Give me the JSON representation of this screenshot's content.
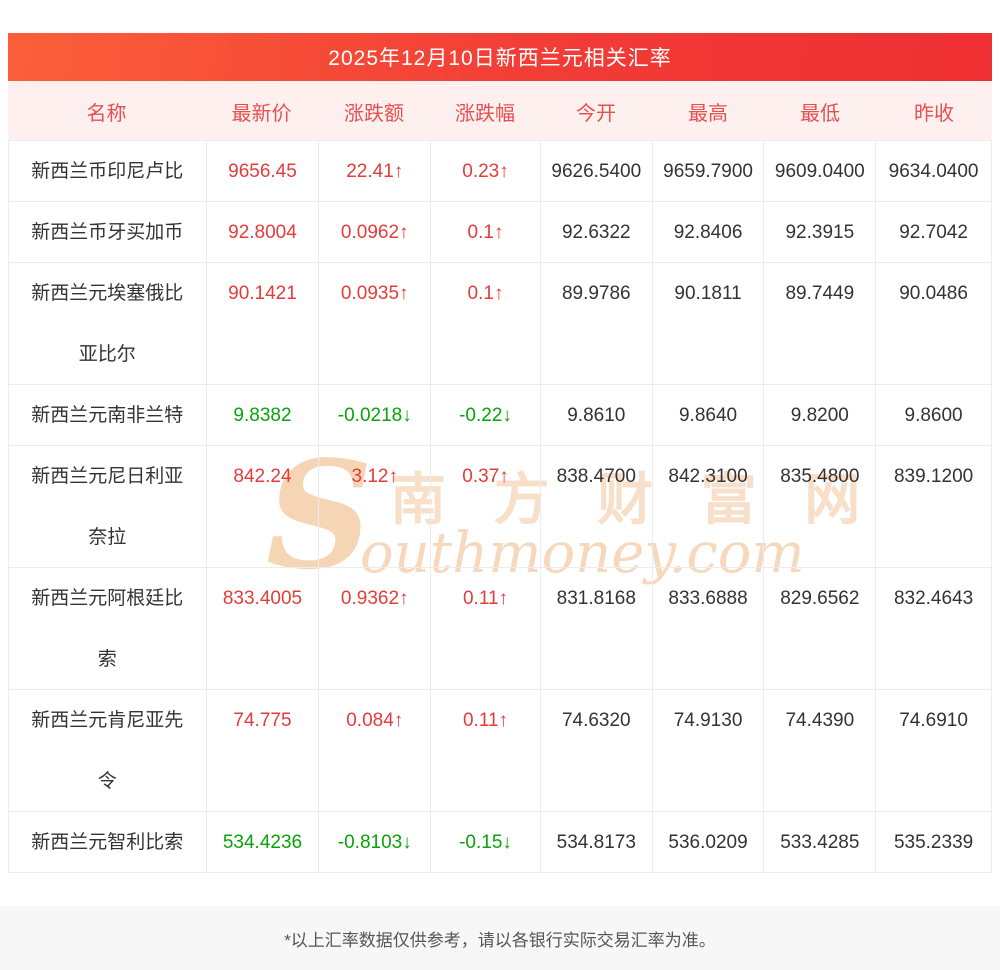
{
  "banner": {
    "title": "2025年12月10日新西兰元相关汇率"
  },
  "table": {
    "headers": [
      "名称",
      "最新价",
      "涨跌额",
      "涨跌幅",
      "今开",
      "最高",
      "最低",
      "昨收"
    ],
    "rows": [
      {
        "name": "新西兰币印尼卢比",
        "trend": "up",
        "latest": "9656.45",
        "change": "22.41↑",
        "pct": "0.23↑",
        "open": "9626.5400",
        "high": "9659.7900",
        "low": "9609.0400",
        "prev": "9634.0400"
      },
      {
        "name": "新西兰币牙买加币",
        "trend": "up",
        "latest": "92.8004",
        "change": "0.0962↑",
        "pct": "0.1↑",
        "open": "92.6322",
        "high": "92.8406",
        "low": "92.3915",
        "prev": "92.7042"
      },
      {
        "name": "新西兰元埃塞俄比亚比尔",
        "trend": "up",
        "latest": "90.1421",
        "change": "0.0935↑",
        "pct": "0.1↑",
        "open": "89.9786",
        "high": "90.1811",
        "low": "89.7449",
        "prev": "90.0486"
      },
      {
        "name": "新西兰元南非兰特",
        "trend": "down",
        "latest": "9.8382",
        "change": "-0.0218↓",
        "pct": "-0.22↓",
        "open": "9.8610",
        "high": "9.8640",
        "low": "9.8200",
        "prev": "9.8600"
      },
      {
        "name": "新西兰元尼日利亚奈拉",
        "trend": "up",
        "latest": "842.24",
        "change": "3.12↑",
        "pct": "0.37↑",
        "open": "838.4700",
        "high": "842.3100",
        "low": "835.4800",
        "prev": "839.1200"
      },
      {
        "name": "新西兰元阿根廷比索",
        "trend": "up",
        "latest": "833.4005",
        "change": "0.9362↑",
        "pct": "0.11↑",
        "open": "831.8168",
        "high": "833.6888",
        "low": "829.6562",
        "prev": "832.4643"
      },
      {
        "name": "新西兰元肯尼亚先令",
        "trend": "up",
        "latest": "74.775",
        "change": "0.084↑",
        "pct": "0.11↑",
        "open": "74.6320",
        "high": "74.9130",
        "low": "74.4390",
        "prev": "74.6910"
      },
      {
        "name": "新西兰元智利比索",
        "trend": "down",
        "latest": "534.4236",
        "change": "-0.8103↓",
        "pct": "-0.15↓",
        "open": "534.8173",
        "high": "536.0209",
        "low": "533.4285",
        "prev": "535.2339"
      }
    ]
  },
  "watermark": {
    "s": "S",
    "cn": "南 方 财 富 网",
    "en": "outhmoney.com"
  },
  "footer": {
    "note": "*以上汇率数据仅供参考，请以各银行实际交易汇率为准。"
  },
  "colors": {
    "banner_gradient_from": "#fb5f3a",
    "banner_gradient_to": "#ee2f33",
    "header_bg": "#fdf0ee",
    "header_text": "#e65050",
    "up": "#e43b3b",
    "down": "#0aa20a",
    "border": "#ececec",
    "text": "#333333",
    "watermark": "#f6d8bd",
    "footer_bg": "#f7f7f7"
  }
}
